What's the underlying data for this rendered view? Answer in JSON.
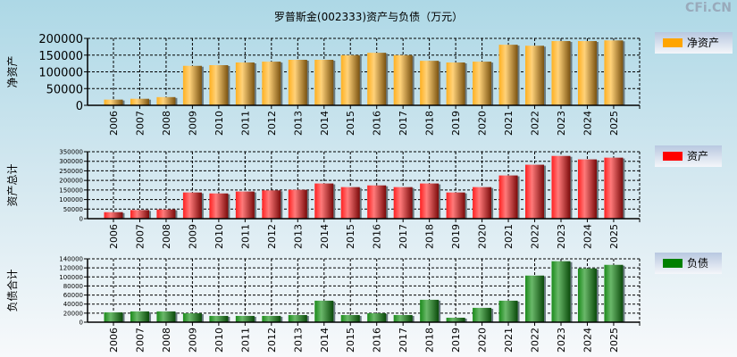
{
  "title": "罗普斯金(002333)资产与负债（万元）",
  "watermark": "CFi.CN",
  "colors": {
    "net": "#ffa500",
    "asset": "#ff0000",
    "liab": "#008000"
  },
  "chart_data": [
    {
      "type": "bar",
      "ylabel": "净资产",
      "legend": "净资产",
      "legend_placement": "right",
      "ylim": [
        0,
        200000
      ],
      "yticks": [
        0,
        50000,
        100000,
        150000,
        200000
      ],
      "categories": [
        "2006",
        "2007",
        "2008",
        "2009",
        "2010",
        "2011",
        "2012",
        "2013",
        "2014",
        "2015",
        "2016",
        "2017",
        "2018",
        "2019",
        "2020",
        "2021",
        "2022",
        "2023",
        "2024",
        "2025"
      ],
      "values": [
        17000,
        19500,
        24500,
        118000,
        120000,
        128000,
        130500,
        136000,
        136000,
        150000,
        157000,
        150000,
        133000,
        128000,
        130500,
        181000,
        178000,
        192000,
        192000,
        194000
      ]
    },
    {
      "type": "bar",
      "ylabel": "资产总计",
      "legend": "资产",
      "legend_placement": "right",
      "ylim": [
        0,
        350000
      ],
      "yticks": [
        0,
        50000,
        100000,
        150000,
        200000,
        250000,
        300000,
        350000
      ],
      "categories": [
        "2006",
        "2007",
        "2008",
        "2009",
        "2010",
        "2011",
        "2012",
        "2013",
        "2014",
        "2015",
        "2016",
        "2017",
        "2018",
        "2019",
        "2020",
        "2021",
        "2022",
        "2023",
        "2024",
        "2025"
      ],
      "values": [
        34000,
        45000,
        48000,
        137000,
        132000,
        142000,
        148000,
        151000,
        184000,
        165000,
        174000,
        165000,
        184000,
        137000,
        165000,
        226000,
        282000,
        328000,
        310000,
        319000
      ]
    },
    {
      "type": "bar",
      "ylabel": "负债合计",
      "legend": "负债",
      "legend_placement": "right",
      "ylim": [
        0,
        140000
      ],
      "yticks": [
        0,
        20000,
        40000,
        60000,
        80000,
        100000,
        120000,
        140000
      ],
      "categories": [
        "2006",
        "2007",
        "2008",
        "2009",
        "2010",
        "2011",
        "2012",
        "2013",
        "2014",
        "2015",
        "2016",
        "2017",
        "2018",
        "2019",
        "2020",
        "2021",
        "2022",
        "2023",
        "2024",
        "2025"
      ],
      "values": [
        21800,
        23800,
        23800,
        19800,
        13900,
        13900,
        13900,
        15800,
        47500,
        15800,
        19800,
        15800,
        49500,
        9900,
        31700,
        47500,
        103000,
        134700,
        118800,
        126700
      ]
    }
  ]
}
